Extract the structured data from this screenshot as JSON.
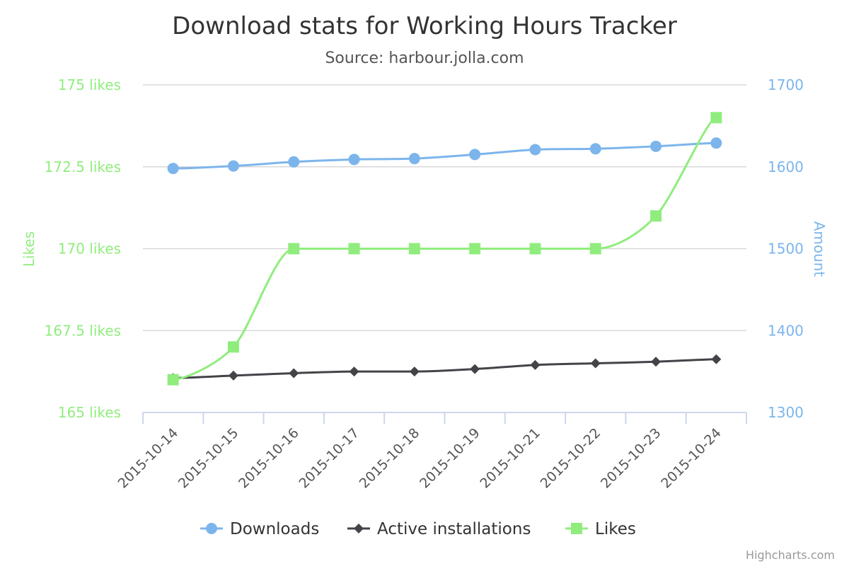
{
  "chart_data": {
    "type": "line",
    "title": "Download stats for Working Hours Tracker",
    "subtitle": "Source: harbour.jolla.com",
    "categories": [
      "2015-10-14",
      "2015-10-15",
      "2015-10-16",
      "2015-10-17",
      "2015-10-18",
      "2015-10-19",
      "2015-10-21",
      "2015-10-22",
      "2015-10-23",
      "2015-10-24"
    ],
    "left_axis": {
      "title": "Likes",
      "range": [
        165,
        175
      ],
      "ticks": [
        165,
        167.5,
        170,
        172.5,
        175
      ],
      "tick_labels": [
        "165 likes",
        "167.5 likes",
        "170 likes",
        "172.5 likes",
        "175 likes"
      ],
      "color": "#90ed7d"
    },
    "right_axis": {
      "title": "Amount",
      "range": [
        1300,
        1700
      ],
      "ticks": [
        1300,
        1400,
        1500,
        1600,
        1700
      ],
      "tick_labels": [
        "1300",
        "1400",
        "1500",
        "1600",
        "1700"
      ],
      "color": "#7cb5ec"
    },
    "series": [
      {
        "name": "Downloads",
        "axis": "right",
        "color": "#7cb5ec",
        "marker": "circle",
        "values": [
          1598,
          1601,
          1606,
          1609,
          1610,
          1615,
          1621,
          1622,
          1625,
          1629
        ]
      },
      {
        "name": "Active installations",
        "axis": "right",
        "color": "#434348",
        "marker": "diamond",
        "values": [
          1342,
          1345,
          1348,
          1350,
          1350,
          1353,
          1358,
          1360,
          1362,
          1365
        ]
      },
      {
        "name": "Likes",
        "axis": "left",
        "color": "#90ed7d",
        "marker": "square",
        "values": [
          166,
          167,
          170,
          170,
          170,
          170,
          170,
          170,
          171,
          174
        ]
      }
    ],
    "grid": true,
    "legend": "bottom-center"
  },
  "credits": "Highcharts.com"
}
